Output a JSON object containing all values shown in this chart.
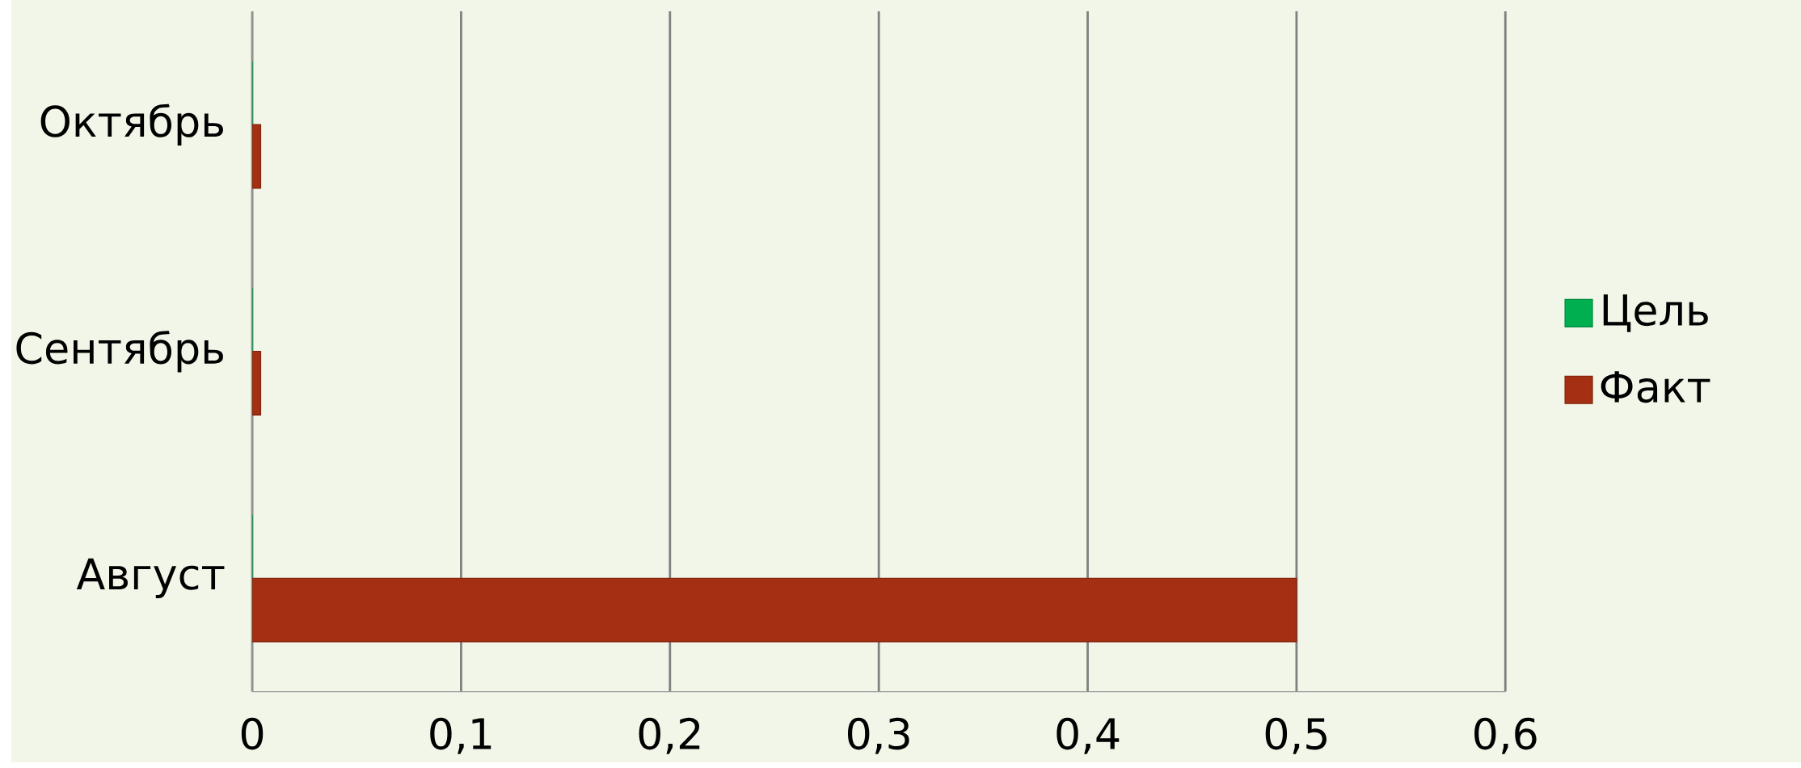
{
  "chart_data": {
    "type": "bar",
    "orientation": "horizontal",
    "categories": [
      "Октябрь",
      "Сентябрь",
      "Август"
    ],
    "series": [
      {
        "name": "Цель",
        "color": "#00b050",
        "values": [
          0,
          0,
          0
        ]
      },
      {
        "name": "Факт",
        "color": "#a52f12",
        "values": [
          0.004,
          0.004,
          0.5
        ]
      }
    ],
    "xlim": [
      0,
      0.6
    ],
    "xticks": [
      {
        "value": 0,
        "label": "0"
      },
      {
        "value": 0.1,
        "label": "0,1"
      },
      {
        "value": 0.2,
        "label": "0,2"
      },
      {
        "value": 0.3,
        "label": "0,3"
      },
      {
        "value": 0.4,
        "label": "0,4"
      },
      {
        "value": 0.5,
        "label": "0,5"
      },
      {
        "value": 0.6,
        "label": "0,6"
      }
    ],
    "grid": "x",
    "legend": "right"
  }
}
